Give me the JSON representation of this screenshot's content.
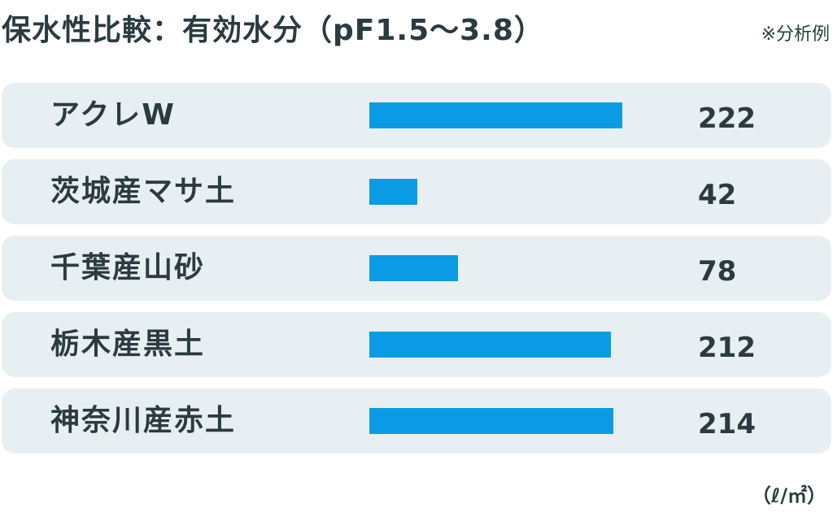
{
  "chart_data": {
    "type": "bar",
    "orientation": "horizontal",
    "title": "保水性比較：有効水分（pF1.5〜3.8）",
    "note": "※分析例",
    "unit": "（ℓ/㎡）",
    "categories": [
      "アクレW",
      "茨城産マサ土",
      "千葉産山砂",
      "栃木産黒土",
      "神奈川産赤土"
    ],
    "values": [
      222,
      42,
      78,
      212,
      214
    ],
    "value_labels": [
      "222",
      "42",
      "78",
      "212",
      "214"
    ],
    "xlim": [
      0,
      300
    ],
    "grid": false,
    "legend": "none",
    "bar_color": "#0b9be4",
    "row_background": "#e8eff2",
    "text_color": "#2b3b40"
  }
}
